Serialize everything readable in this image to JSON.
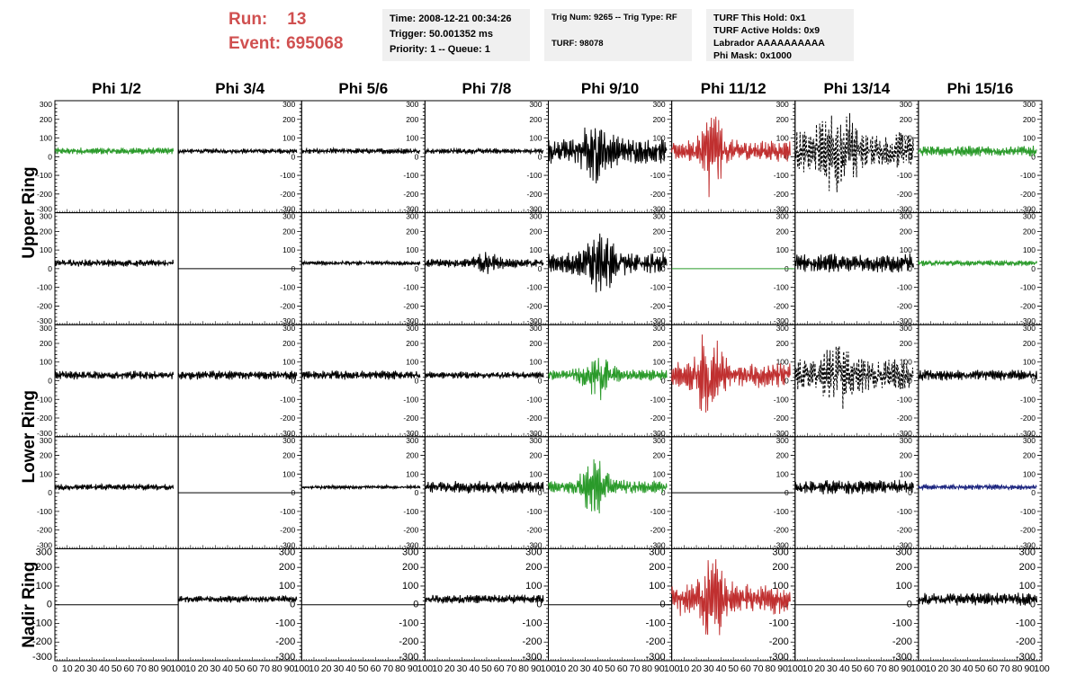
{
  "header": {
    "run_label": "Run:",
    "run_value": "13",
    "event_label": "Event:",
    "event_value": "695068"
  },
  "info_time": {
    "line1": "Time: 2008-12-21 00:34:26",
    "line2": "Trigger: 50.001352 ms",
    "line3": "Priority: 1 -- Queue: 1"
  },
  "info_trig": {
    "line1": "Trig Num: 9265 -- Trig Type: RF",
    "line2": "TURF: 98078"
  },
  "info_turf": {
    "line1": "TURF This Hold: 0x1",
    "line2": "TURF Active Holds: 0x9",
    "line3": "Labrador AAAAAAAAAA",
    "line4": "Phi Mask: 0x1000"
  },
  "colors": {
    "black": "#000000",
    "green": "#2a9a2a",
    "red": "#c03030",
    "blue": "#1a237e",
    "run_text": "#d05050",
    "info_bg": "#f0f0f0"
  },
  "chart_data": {
    "type": "line",
    "columns": [
      "Phi 1/2",
      "Phi 3/4",
      "Phi 5/6",
      "Phi 7/8",
      "Phi 9/10",
      "Phi 11/12",
      "Phi 13/14",
      "Phi 15/16"
    ],
    "ring_labels": [
      {
        "label": "Upper Ring",
        "rows": [
          0,
          1
        ]
      },
      {
        "label": "Lower Ring",
        "rows": [
          2,
          3
        ]
      },
      {
        "label": "Nadir Ring",
        "rows": [
          4
        ]
      }
    ],
    "xlim": [
      0,
      100
    ],
    "ylim": [
      -300,
      300
    ],
    "x_ticks": [
      "0",
      "10",
      "20",
      "30",
      "40",
      "50",
      "60",
      "70",
      "80",
      "90",
      "100"
    ],
    "y_ticks": [
      "300",
      "200",
      "100",
      "0",
      "-100",
      "-200",
      "-300"
    ],
    "traces": [
      [
        {
          "color": "green",
          "amp": 20,
          "offset": 30,
          "x_end": 96,
          "dashed": false
        },
        {
          "color": "black",
          "amp": 14,
          "offset": 30,
          "x_end": 96,
          "dashed": false
        },
        {
          "color": "black",
          "amp": 16,
          "offset": 30,
          "x_end": 96,
          "dashed": false
        },
        {
          "color": "black",
          "amp": 15,
          "offset": 30,
          "x_end": 96,
          "dashed": false
        },
        {
          "color": "black",
          "amp": 70,
          "offset": 30,
          "x_end": 96,
          "dashed": false,
          "burst": {
            "center": 38,
            "width": 12,
            "amp": 120
          }
        },
        {
          "color": "red",
          "amp": 60,
          "offset": 30,
          "x_end": 96,
          "dashed": false,
          "burst": {
            "center": 33,
            "width": 8,
            "amp": 220
          }
        },
        {
          "color": "black",
          "amp": 110,
          "offset": 30,
          "x_end": 96,
          "dashed": true,
          "burst": {
            "center": 35,
            "width": 15,
            "amp": 160
          }
        },
        {
          "color": "green",
          "amp": 30,
          "offset": 30,
          "x_end": 96,
          "dashed": false
        }
      ],
      [
        {
          "color": "black",
          "amp": 20,
          "offset": 30,
          "x_end": 96,
          "dashed": false
        },
        {
          "color": "black",
          "amp": 0,
          "offset": 0,
          "x_end": 100,
          "dashed": false
        },
        {
          "color": "black",
          "amp": 12,
          "offset": 30,
          "x_end": 96,
          "dashed": false
        },
        {
          "color": "black",
          "amp": 25,
          "offset": 30,
          "x_end": 96,
          "dashed": false,
          "burst": {
            "center": 50,
            "width": 10,
            "amp": 40
          }
        },
        {
          "color": "black",
          "amp": 60,
          "offset": 30,
          "x_end": 96,
          "dashed": false,
          "burst": {
            "center": 42,
            "width": 12,
            "amp": 130
          }
        },
        {
          "color": "green",
          "amp": 0,
          "offset": 0,
          "x_end": 100,
          "dashed": false
        },
        {
          "color": "black",
          "amp": 55,
          "offset": 30,
          "x_end": 96,
          "dashed": false
        },
        {
          "color": "green",
          "amp": 16,
          "offset": 30,
          "x_end": 96,
          "dashed": false
        }
      ],
      [
        {
          "color": "black",
          "amp": 25,
          "offset": 30,
          "x_end": 96,
          "dashed": false
        },
        {
          "color": "black",
          "amp": 25,
          "offset": 30,
          "x_end": 96,
          "dashed": false
        },
        {
          "color": "black",
          "amp": 25,
          "offset": 30,
          "x_end": 96,
          "dashed": false
        },
        {
          "color": "black",
          "amp": 20,
          "offset": 30,
          "x_end": 96,
          "dashed": false
        },
        {
          "color": "green",
          "amp": 30,
          "offset": 30,
          "x_end": 96,
          "dashed": false,
          "burst": {
            "center": 40,
            "width": 12,
            "amp": 110
          }
        },
        {
          "color": "red",
          "amp": 70,
          "offset": 30,
          "x_end": 96,
          "dashed": false,
          "burst": {
            "center": 30,
            "width": 10,
            "amp": 200
          }
        },
        {
          "color": "black",
          "amp": 90,
          "offset": 30,
          "x_end": 96,
          "dashed": true,
          "burst": {
            "center": 35,
            "width": 12,
            "amp": 120
          }
        },
        {
          "color": "black",
          "amp": 30,
          "offset": 30,
          "x_end": 96,
          "dashed": false
        }
      ],
      [
        {
          "color": "black",
          "amp": 18,
          "offset": 30,
          "x_end": 96,
          "dashed": false
        },
        {
          "color": "black",
          "amp": 0,
          "offset": 0,
          "x_end": 100,
          "dashed": false
        },
        {
          "color": "black",
          "amp": 10,
          "offset": 30,
          "x_end": 96,
          "dashed": false
        },
        {
          "color": "black",
          "amp": 35,
          "offset": 30,
          "x_end": 96,
          "dashed": false
        },
        {
          "color": "green",
          "amp": 40,
          "offset": 30,
          "x_end": 96,
          "dashed": false,
          "burst": {
            "center": 37,
            "width": 10,
            "amp": 150
          }
        },
        {
          "color": "black",
          "amp": 0,
          "offset": 0,
          "x_end": 100,
          "dashed": false
        },
        {
          "color": "black",
          "amp": 40,
          "offset": 30,
          "x_end": 96,
          "dashed": false
        },
        {
          "color": "blue",
          "amp": 15,
          "offset": 30,
          "x_end": 96,
          "dashed": false
        }
      ],
      [
        {
          "color": "black",
          "amp": 0,
          "offset": 0,
          "x_end": 100,
          "dashed": false
        },
        {
          "color": "black",
          "amp": 20,
          "offset": 30,
          "x_end": 96,
          "dashed": false
        },
        {
          "color": "black",
          "amp": 0,
          "offset": 0,
          "x_end": 100,
          "dashed": false
        },
        {
          "color": "black",
          "amp": 25,
          "offset": 30,
          "x_end": 96,
          "dashed": false
        },
        {
          "color": "black",
          "amp": 0,
          "offset": 0,
          "x_end": 100,
          "dashed": false
        },
        {
          "color": "red",
          "amp": 90,
          "offset": 30,
          "x_end": 96,
          "dashed": false,
          "burst": {
            "center": 32,
            "width": 10,
            "amp": 180
          }
        },
        {
          "color": "black",
          "amp": 0,
          "offset": 0,
          "x_end": 100,
          "dashed": false
        },
        {
          "color": "black",
          "amp": 35,
          "offset": 30,
          "x_end": 96,
          "dashed": false
        }
      ]
    ]
  }
}
